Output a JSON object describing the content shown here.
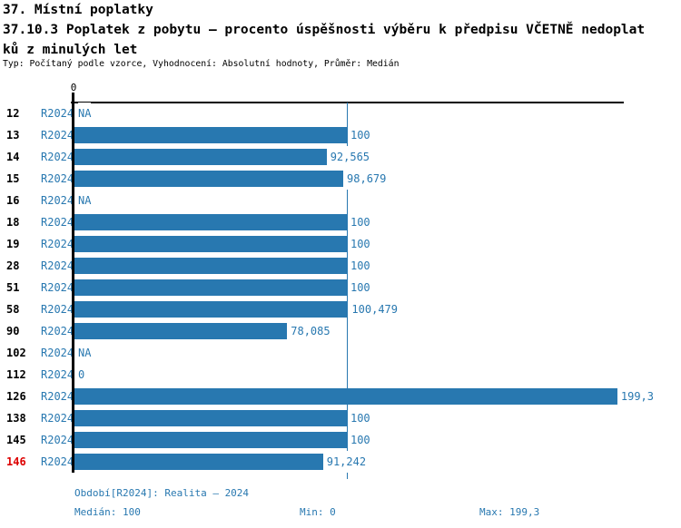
{
  "header": {
    "title_line1": "37. Místní poplatky",
    "title_line2": "37.10.3 Poplatek z pobytu – procento úspěšnosti výběru k předpisu VČETNĚ nedoplat",
    "title_line3": "ků z minulých let",
    "meta": "Typ: Počítaný podle vzorce, Vyhodnocení: Absolutní hodnoty, Průměr: Medián"
  },
  "chart_data": {
    "type": "bar",
    "orientation": "horizontal",
    "title": "37.10.3 Poplatek z pobytu – procento úspěšnosti výběru k předpisu VČETNĚ nedoplatků z minulých let",
    "categories": [
      "12",
      "13",
      "14",
      "15",
      "16",
      "18",
      "19",
      "28",
      "51",
      "58",
      "90",
      "102",
      "112",
      "126",
      "138",
      "145",
      "146"
    ],
    "period_label": "R2024",
    "series": [
      {
        "name": "R2024",
        "values": [
          null,
          100,
          92.565,
          98.679,
          null,
          100,
          100,
          100,
          100,
          100.479,
          78.085,
          null,
          0,
          199.3,
          100,
          100,
          91.242
        ]
      }
    ],
    "value_labels": [
      "NA",
      "100",
      "92,565",
      "98,679",
      "NA",
      "100",
      "100",
      "100",
      "100",
      "100,479",
      "78,085",
      "NA",
      "0",
      "199,3",
      "100",
      "100",
      "91,242"
    ],
    "highlighted_category": "146",
    "axis_zero_label": "0",
    "xlim": [
      0,
      201.67
    ],
    "grid": false,
    "median_line_value": 100,
    "stats": {
      "median": 100,
      "min": 0,
      "max": 199.3
    }
  },
  "footer": {
    "period": "Období[R2024]: Realita – 2024",
    "median": "Medián: 100",
    "min": "Min: 0",
    "max": "Max: 199,3"
  },
  "colors": {
    "bar_blue": "#2878b0",
    "text_blue": "#2878b0",
    "highlight_red": "#dd0000",
    "axis_black": "#000000"
  }
}
